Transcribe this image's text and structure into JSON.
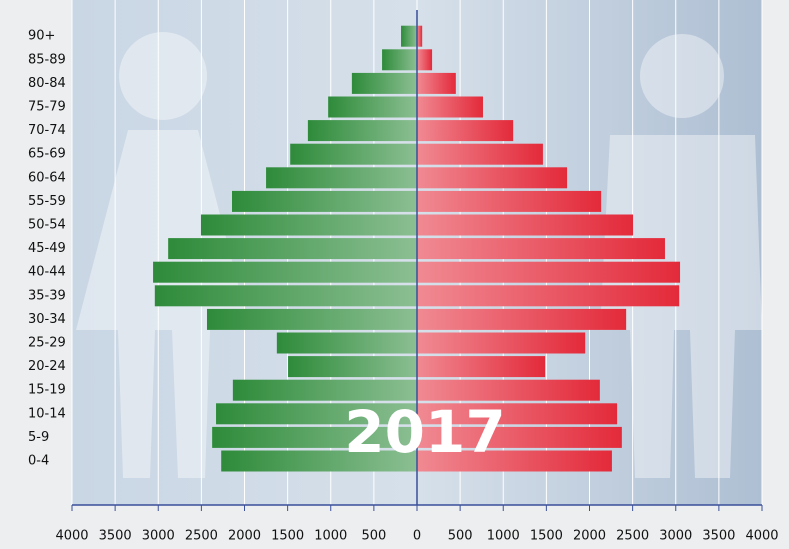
{
  "chart_data": {
    "type": "pyramid",
    "annotation": "2017",
    "categories": [
      "0-4",
      "5-9",
      "10-14",
      "15-19",
      "20-24",
      "25-29",
      "30-34",
      "35-39",
      "40-44",
      "45-49",
      "50-54",
      "55-59",
      "60-64",
      "65-69",
      "70-74",
      "75-79",
      "80-84",
      "85-89",
      "90+"
    ],
    "series": [
      {
        "color": "#2e8b3a",
        "values": [
          -2270,
          -2375,
          -2330,
          -2135,
          -1495,
          -1625,
          -2435,
          -3040,
          -3060,
          -2885,
          -2505,
          -2145,
          -1750,
          -1470,
          -1265,
          -1030,
          -755,
          -405,
          -185
        ]
      },
      {
        "color": "#e32a3a",
        "values": [
          2260,
          2375,
          2320,
          2120,
          1485,
          1950,
          2425,
          3040,
          3050,
          2875,
          2505,
          2135,
          1740,
          1460,
          1115,
          765,
          450,
          175,
          60
        ]
      }
    ],
    "xlim": [
      -4000,
      4000
    ],
    "xticks": [
      {
        "value": -4000,
        "label": "4000"
      },
      {
        "value": -3500,
        "label": "3500"
      },
      {
        "value": -3000,
        "label": "3000"
      },
      {
        "value": -2500,
        "label": "2500"
      },
      {
        "value": -2000,
        "label": "2000"
      },
      {
        "value": -1500,
        "label": "1500"
      },
      {
        "value": -1000,
        "label": "1000"
      },
      {
        "value": -500,
        "label": "500"
      },
      0,
      500,
      1000,
      1500,
      2000,
      2500,
      3000,
      3500,
      4000
    ],
    "grid": true
  }
}
